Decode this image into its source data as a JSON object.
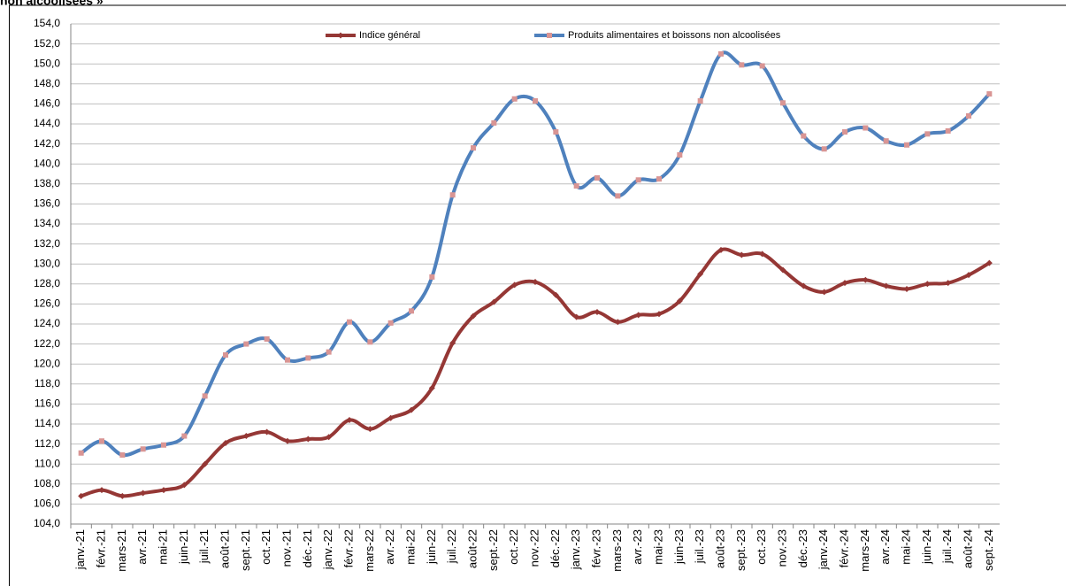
{
  "chart_data": {
    "type": "line",
    "title": "non alcoolisées »",
    "categories": [
      "janv.-21",
      "févr.-21",
      "mars-21",
      "avr.-21",
      "mai-21",
      "juin-21",
      "juil.-21",
      "août-21",
      "sept.-21",
      "oct.-21",
      "nov.-21",
      "déc.-21",
      "janv.-22",
      "févr.-22",
      "mars-22",
      "avr.-22",
      "mai-22",
      "juin-22",
      "juil.-22",
      "août-22",
      "sept.-22",
      "oct.-22",
      "nov.-22",
      "déc.-22",
      "janv.-23",
      "févr.-23",
      "mars-23",
      "avr.-23",
      "mai-23",
      "juin-23",
      "juil.-23",
      "août-23",
      "sept.-23",
      "oct.-23",
      "nov.-23",
      "déc.-23",
      "janv.-24",
      "févr.-24",
      "mars-24",
      "avr.-24",
      "mai-24",
      "juin-24",
      "juil.-24",
      "août-24",
      "sept.-24"
    ],
    "series": [
      {
        "name": "Indice général",
        "color": "#953735",
        "marker_color": "#953735",
        "values": [
          106.8,
          107.4,
          106.8,
          107.1,
          107.4,
          107.9,
          110.0,
          112.1,
          112.8,
          113.2,
          112.3,
          112.5,
          112.7,
          114.4,
          113.5,
          114.6,
          115.4,
          117.6,
          122.1,
          124.8,
          126.2,
          127.9,
          128.2,
          126.9,
          124.7,
          125.2,
          124.2,
          124.9,
          125.0,
          126.3,
          129.0,
          131.4,
          130.9,
          131.0,
          129.4,
          127.8,
          127.2,
          128.1,
          128.4,
          127.8,
          127.5,
          128.0,
          128.1,
          128.9,
          130.1
        ]
      },
      {
        "name": "Produits alimentaires et boissons non alcoolisées",
        "color": "#4f81bd",
        "marker_color": "#d99594",
        "values": [
          111.1,
          112.3,
          110.9,
          111.5,
          111.9,
          112.8,
          116.8,
          120.9,
          122.0,
          122.5,
          120.4,
          120.6,
          121.2,
          124.2,
          122.2,
          124.1,
          125.3,
          128.7,
          136.9,
          141.6,
          144.1,
          146.5,
          146.3,
          143.2,
          137.8,
          138.6,
          136.8,
          138.4,
          138.5,
          140.9,
          146.3,
          151.0,
          149.9,
          149.8,
          146.1,
          142.8,
          141.5,
          143.2,
          143.6,
          142.3,
          141.9,
          143.0,
          143.3,
          144.8,
          147.0
        ]
      }
    ],
    "ylim": [
      104,
      154
    ],
    "yticks": [
      {
        "value": 104,
        "label": "104,0"
      },
      {
        "value": 106,
        "label": "106,0"
      },
      {
        "value": 108,
        "label": "108,0"
      },
      {
        "value": 110,
        "label": "110,0"
      },
      {
        "value": 112,
        "label": "112,0"
      },
      {
        "value": 114,
        "label": "114,0"
      },
      {
        "value": 116,
        "label": "116,0"
      },
      {
        "value": 118,
        "label": "118,0"
      },
      {
        "value": 120,
        "label": "120,0"
      },
      {
        "value": 122,
        "label": "122,0"
      },
      {
        "value": 124,
        "label": "124,0"
      },
      {
        "value": 126,
        "label": "126,0"
      },
      {
        "value": 128,
        "label": "128,0"
      },
      {
        "value": 130,
        "label": "130,0"
      },
      {
        "value": 132,
        "label": "132,0"
      },
      {
        "value": 134,
        "label": "134,0"
      },
      {
        "value": 136,
        "label": "136,0"
      },
      {
        "value": 138,
        "label": "138,0"
      },
      {
        "value": 140,
        "label": "140,0"
      },
      {
        "value": 142,
        "label": "142,0"
      },
      {
        "value": 144,
        "label": "144,0"
      },
      {
        "value": 146,
        "label": "146,0"
      },
      {
        "value": 148,
        "label": "148,0"
      },
      {
        "value": 150,
        "label": "150,0"
      },
      {
        "value": 152,
        "label": "152,0"
      },
      {
        "value": 154,
        "label": "154,0"
      }
    ],
    "grid": true,
    "smooth": true,
    "legend": "top"
  }
}
